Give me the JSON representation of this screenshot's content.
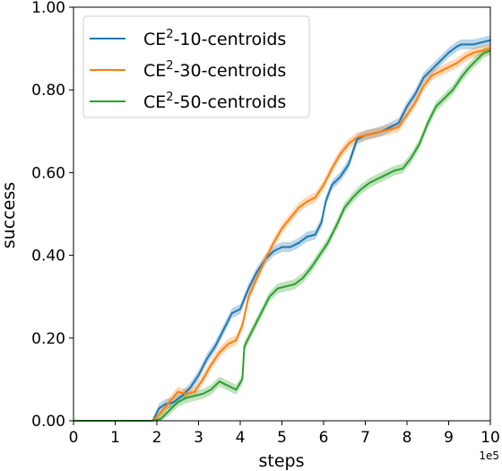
{
  "chart_data": {
    "type": "line",
    "xlabel": "steps",
    "ylabel": "success",
    "x_offset_label": "1e5",
    "xlim": [
      0,
      10
    ],
    "ylim": [
      0,
      1
    ],
    "x_ticks": [
      0,
      1,
      2,
      3,
      4,
      5,
      6,
      7,
      8,
      9,
      10
    ],
    "x_tick_labels": [
      "0",
      "1",
      "2",
      "3",
      "4",
      "5",
      "6",
      "7",
      "8",
      "9",
      "10"
    ],
    "y_ticks": [
      0,
      0.2,
      0.4,
      0.6,
      0.8,
      1.0
    ],
    "y_tick_labels": [
      "0.00",
      "0.20",
      "0.40",
      "0.60",
      "0.80",
      "1.00"
    ],
    "grid": false,
    "legend_position": "top-left",
    "series": [
      {
        "name_base": "CE",
        "name_sup": "2",
        "name_rest": "-10-centroids",
        "color": "#1f77b4",
        "band": 0.012,
        "points": [
          [
            0,
            0
          ],
          [
            1.9,
            0
          ],
          [
            2.05,
            0.03
          ],
          [
            2.2,
            0.04
          ],
          [
            2.4,
            0.045
          ],
          [
            2.6,
            0.06
          ],
          [
            2.8,
            0.08
          ],
          [
            3.0,
            0.11
          ],
          [
            3.2,
            0.15
          ],
          [
            3.4,
            0.18
          ],
          [
            3.6,
            0.22
          ],
          [
            3.8,
            0.26
          ],
          [
            4.0,
            0.27
          ],
          [
            4.2,
            0.32
          ],
          [
            4.4,
            0.36
          ],
          [
            4.6,
            0.39
          ],
          [
            4.8,
            0.41
          ],
          [
            5.0,
            0.42
          ],
          [
            5.2,
            0.42
          ],
          [
            5.4,
            0.43
          ],
          [
            5.6,
            0.445
          ],
          [
            5.8,
            0.45
          ],
          [
            5.95,
            0.48
          ],
          [
            6.05,
            0.53
          ],
          [
            6.2,
            0.57
          ],
          [
            6.4,
            0.59
          ],
          [
            6.6,
            0.62
          ],
          [
            6.8,
            0.68
          ],
          [
            7.0,
            0.69
          ],
          [
            7.2,
            0.695
          ],
          [
            7.4,
            0.7
          ],
          [
            7.6,
            0.71
          ],
          [
            7.8,
            0.72
          ],
          [
            8.0,
            0.76
          ],
          [
            8.2,
            0.79
          ],
          [
            8.4,
            0.83
          ],
          [
            8.6,
            0.85
          ],
          [
            8.8,
            0.87
          ],
          [
            9.0,
            0.89
          ],
          [
            9.2,
            0.905
          ],
          [
            9.3,
            0.91
          ],
          [
            9.6,
            0.91
          ],
          [
            9.8,
            0.915
          ],
          [
            10,
            0.92
          ]
        ]
      },
      {
        "name_base": "CE",
        "name_sup": "2",
        "name_rest": "-30-centroids",
        "color": "#ff7f0e",
        "band": 0.012,
        "points": [
          [
            0,
            0
          ],
          [
            1.9,
            0
          ],
          [
            2.1,
            0.02
          ],
          [
            2.3,
            0.045
          ],
          [
            2.5,
            0.07
          ],
          [
            2.7,
            0.065
          ],
          [
            2.9,
            0.07
          ],
          [
            3.1,
            0.1
          ],
          [
            3.3,
            0.135
          ],
          [
            3.5,
            0.165
          ],
          [
            3.7,
            0.185
          ],
          [
            3.9,
            0.195
          ],
          [
            4.05,
            0.23
          ],
          [
            4.2,
            0.3
          ],
          [
            4.4,
            0.345
          ],
          [
            4.6,
            0.39
          ],
          [
            4.8,
            0.43
          ],
          [
            5.0,
            0.465
          ],
          [
            5.2,
            0.49
          ],
          [
            5.4,
            0.515
          ],
          [
            5.6,
            0.53
          ],
          [
            5.8,
            0.54
          ],
          [
            6.0,
            0.57
          ],
          [
            6.2,
            0.61
          ],
          [
            6.4,
            0.645
          ],
          [
            6.6,
            0.67
          ],
          [
            6.8,
            0.685
          ],
          [
            7.0,
            0.69
          ],
          [
            7.2,
            0.695
          ],
          [
            7.4,
            0.7
          ],
          [
            7.6,
            0.705
          ],
          [
            7.8,
            0.71
          ],
          [
            8.0,
            0.74
          ],
          [
            8.2,
            0.77
          ],
          [
            8.4,
            0.81
          ],
          [
            8.6,
            0.835
          ],
          [
            8.8,
            0.845
          ],
          [
            9.0,
            0.855
          ],
          [
            9.2,
            0.865
          ],
          [
            9.4,
            0.88
          ],
          [
            9.6,
            0.89
          ],
          [
            9.8,
            0.895
          ],
          [
            10,
            0.9
          ]
        ]
      },
      {
        "name_base": "CE",
        "name_sup": "2",
        "name_rest": "-50-centroids",
        "color": "#2ca02c",
        "band": 0.012,
        "points": [
          [
            0,
            0
          ],
          [
            1.9,
            0
          ],
          [
            2.1,
            0.005
          ],
          [
            2.3,
            0.025
          ],
          [
            2.5,
            0.045
          ],
          [
            2.7,
            0.055
          ],
          [
            2.9,
            0.06
          ],
          [
            3.1,
            0.065
          ],
          [
            3.3,
            0.075
          ],
          [
            3.5,
            0.095
          ],
          [
            3.7,
            0.085
          ],
          [
            3.9,
            0.075
          ],
          [
            4.05,
            0.1
          ],
          [
            4.1,
            0.18
          ],
          [
            4.3,
            0.22
          ],
          [
            4.5,
            0.26
          ],
          [
            4.7,
            0.3
          ],
          [
            4.9,
            0.32
          ],
          [
            5.1,
            0.325
          ],
          [
            5.3,
            0.33
          ],
          [
            5.5,
            0.345
          ],
          [
            5.7,
            0.37
          ],
          [
            5.9,
            0.4
          ],
          [
            6.1,
            0.43
          ],
          [
            6.3,
            0.47
          ],
          [
            6.5,
            0.515
          ],
          [
            6.7,
            0.54
          ],
          [
            6.9,
            0.56
          ],
          [
            7.1,
            0.575
          ],
          [
            7.3,
            0.585
          ],
          [
            7.5,
            0.595
          ],
          [
            7.7,
            0.605
          ],
          [
            7.9,
            0.61
          ],
          [
            8.1,
            0.635
          ],
          [
            8.3,
            0.67
          ],
          [
            8.5,
            0.72
          ],
          [
            8.7,
            0.76
          ],
          [
            8.9,
            0.78
          ],
          [
            9.1,
            0.8
          ],
          [
            9.3,
            0.83
          ],
          [
            9.5,
            0.855
          ],
          [
            9.7,
            0.875
          ],
          [
            9.85,
            0.89
          ],
          [
            10,
            0.895
          ]
        ]
      }
    ]
  }
}
